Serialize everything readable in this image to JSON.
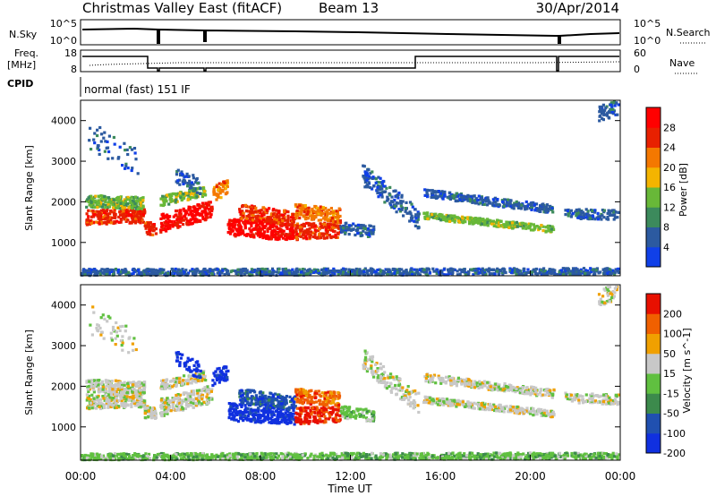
{
  "header": {
    "title": "Christmas Valley East (fitACF)",
    "beam": "Beam 13",
    "date": "30/Apr/2014"
  },
  "nsky": {
    "label": "N.Sky",
    "ticks_left": [
      "10^5",
      "10^0"
    ],
    "ticks_right": [
      "10^5",
      "10^0"
    ],
    "right_label": "N.Search"
  },
  "freq": {
    "label_line1": "Freq.",
    "label_line2": "[MHz]",
    "ticks_left": [
      "18",
      "8"
    ],
    "ticks_right": [
      "60",
      "0"
    ],
    "right_label": "Nave"
  },
  "cpid": {
    "label": "CPID",
    "value": "normal (fast) 151 IF"
  },
  "chart_data": [
    {
      "type": "heatmap",
      "name": "power",
      "ylabel": "Slant Range [km]",
      "y_ticks": [
        "1000",
        "2000",
        "3000",
        "4000"
      ],
      "yrange": [
        180,
        4500
      ],
      "colorbar_label": "Power [dB]",
      "colorbar_ticks": [
        "4",
        "8",
        "12",
        "16",
        "20",
        "24",
        "28"
      ],
      "colors": [
        "#1040e8",
        "#2c5aa0",
        "#3c8a5c",
        "#68b838",
        "#f4b400",
        "#f47800",
        "#e82000",
        "#ff0000"
      ]
    },
    {
      "type": "heatmap",
      "name": "velocity",
      "ylabel": "Slant Range [km]",
      "y_ticks": [
        "1000",
        "2000",
        "3000",
        "4000"
      ],
      "yrange": [
        180,
        4500
      ],
      "colorbar_label": "Velocity [m s^-1]",
      "colorbar_ticks": [
        "200",
        "100",
        "50",
        "15",
        "-15",
        "-50",
        "-100",
        "-200"
      ],
      "colors": [
        "#1030e0",
        "#2050b0",
        "#3c8a4c",
        "#60c040",
        "#c8c8c8",
        "#f0a000",
        "#f06000",
        "#e81000"
      ]
    }
  ],
  "x_axis": {
    "label": "Time UT",
    "ticks": [
      "00:00",
      "04:00",
      "08:00",
      "12:00",
      "16:00",
      "20:00",
      "00:00"
    ]
  }
}
